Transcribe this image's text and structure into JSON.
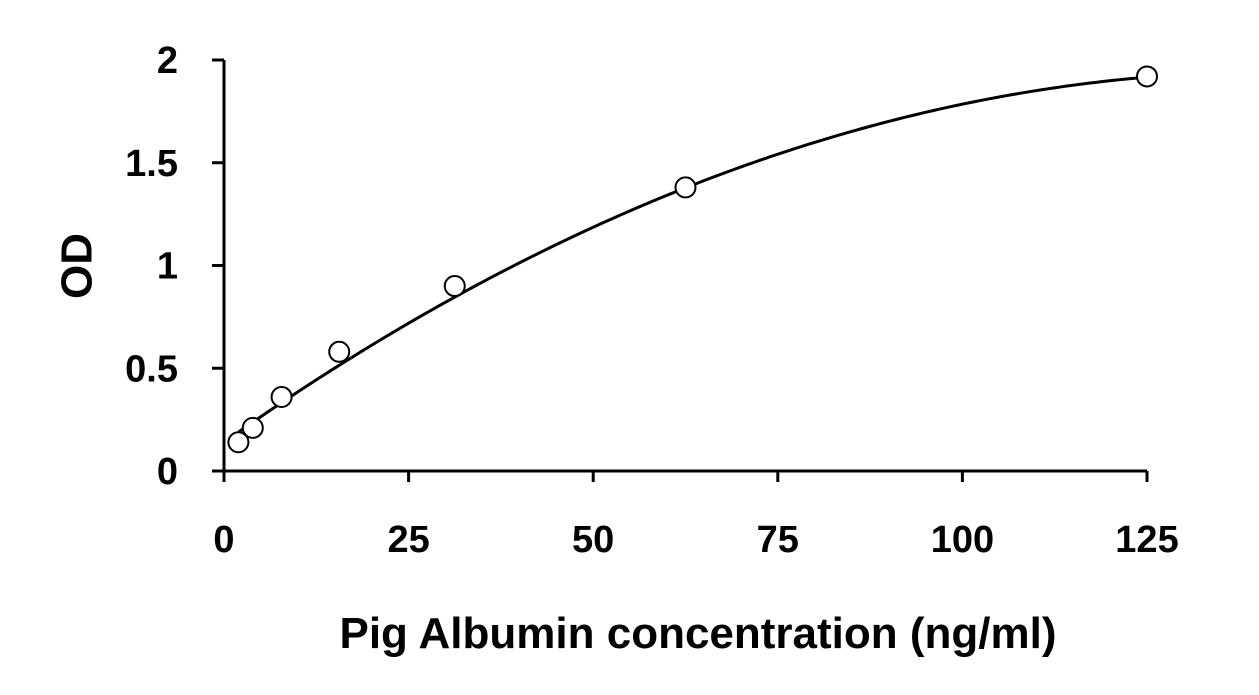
{
  "chart_data": {
    "type": "scatter",
    "title": "",
    "xlabel": "Pig Albumin concentration (ng/ml)",
    "ylabel": "OD",
    "xlim": [
      0,
      125
    ],
    "ylim": [
      0,
      2
    ],
    "xticks": [
      "0",
      "25",
      "50",
      "75",
      "100",
      "125"
    ],
    "yticks": [
      "0",
      "0.5",
      "1",
      "1.5",
      "2"
    ],
    "grid": false,
    "legend": "none",
    "marker": "open-circle",
    "points": [
      {
        "x": 1.95,
        "y": 0.14
      },
      {
        "x": 3.9,
        "y": 0.21
      },
      {
        "x": 7.8,
        "y": 0.36
      },
      {
        "x": 15.6,
        "y": 0.58
      },
      {
        "x": 31.25,
        "y": 0.9
      },
      {
        "x": 62.5,
        "y": 1.38
      },
      {
        "x": 125,
        "y": 1.92
      }
    ],
    "fit_curve": {
      "type": "polynomial",
      "coefficients": [
        0.14,
        0.0254,
        -8.95e-05
      ]
    },
    "colors": {
      "line": "#000000",
      "marker_stroke": "#000000",
      "marker_fill": "#ffffff"
    }
  }
}
